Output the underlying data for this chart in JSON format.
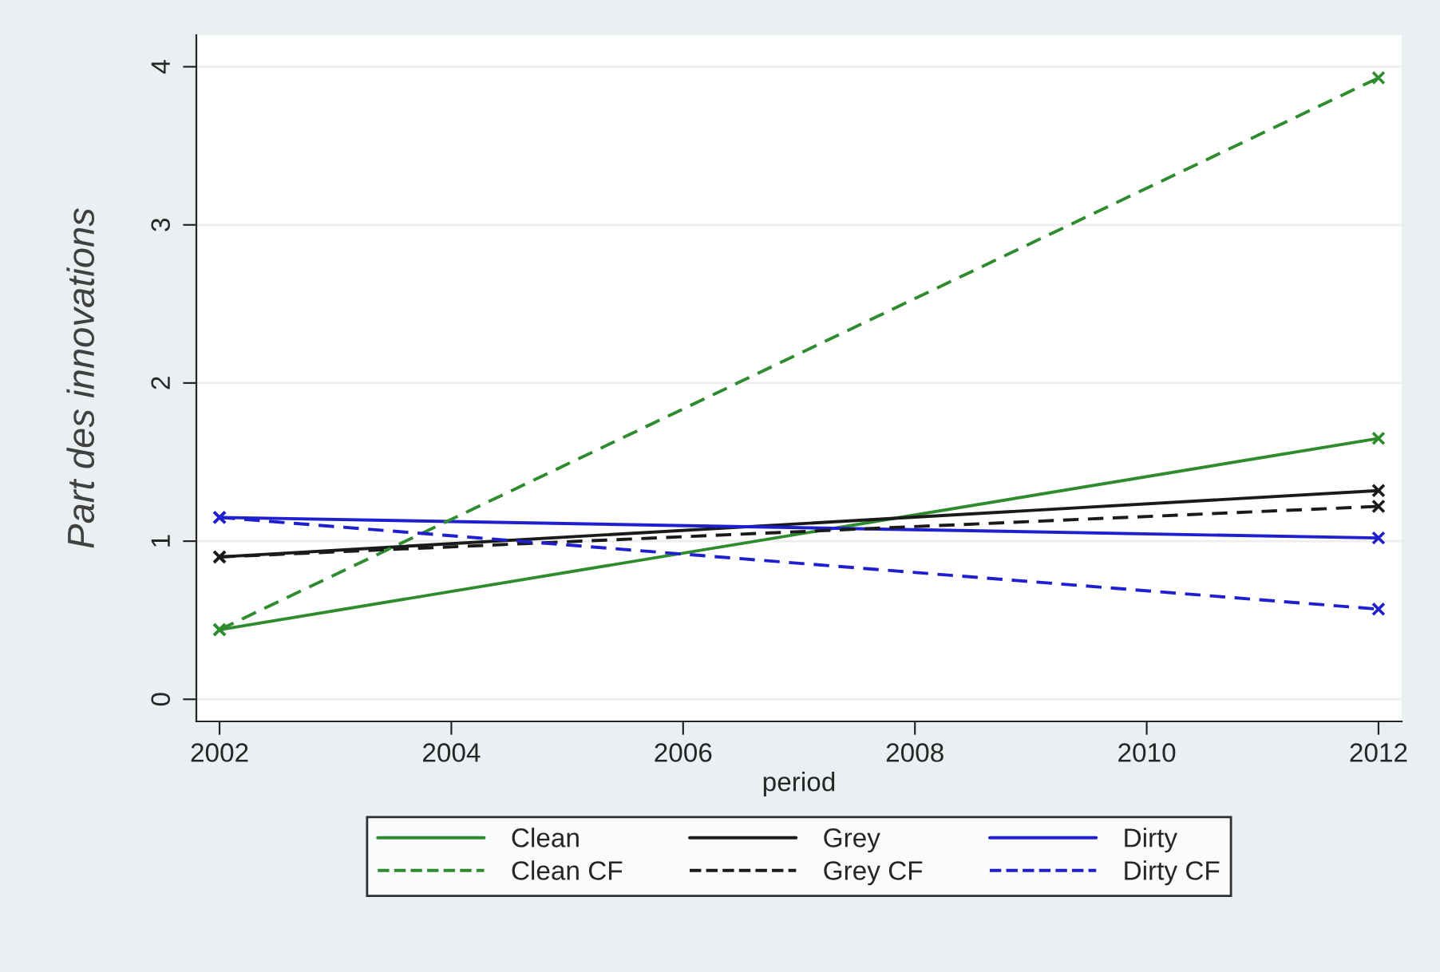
{
  "chart_data": {
    "type": "line",
    "xlabel": "period",
    "ylabel": "Part des innovations",
    "xlim": [
      2001.8,
      2012.2
    ],
    "xticks": [
      2002,
      2004,
      2006,
      2008,
      2010,
      2012
    ],
    "x": [
      2002,
      2012
    ],
    "ylim": [
      -0.14,
      4.2
    ],
    "yticks": [
      0,
      1,
      2,
      3,
      4
    ],
    "grid": "y",
    "legend": "bottom",
    "marker": "cross",
    "series": [
      {
        "name": "Clean",
        "color": "#2e8b2e",
        "line_style": "solid",
        "values": [
          0.44,
          1.65
        ]
      },
      {
        "name": "Grey",
        "color": "#1a1a1a",
        "line_style": "solid",
        "values": [
          0.9,
          1.32
        ]
      },
      {
        "name": "Dirty",
        "color": "#1f1fd0",
        "line_style": "solid",
        "values": [
          1.15,
          1.02
        ]
      },
      {
        "name": "Clean CF",
        "color": "#2e8b2e",
        "line_style": "dashed",
        "values": [
          0.44,
          3.93
        ]
      },
      {
        "name": "Grey CF",
        "color": "#1a1a1a",
        "line_style": "dashed",
        "values": [
          0.9,
          1.22
        ]
      },
      {
        "name": "Dirty CF",
        "color": "#1f1fd0",
        "line_style": "dashed",
        "values": [
          1.15,
          0.57
        ]
      }
    ]
  }
}
